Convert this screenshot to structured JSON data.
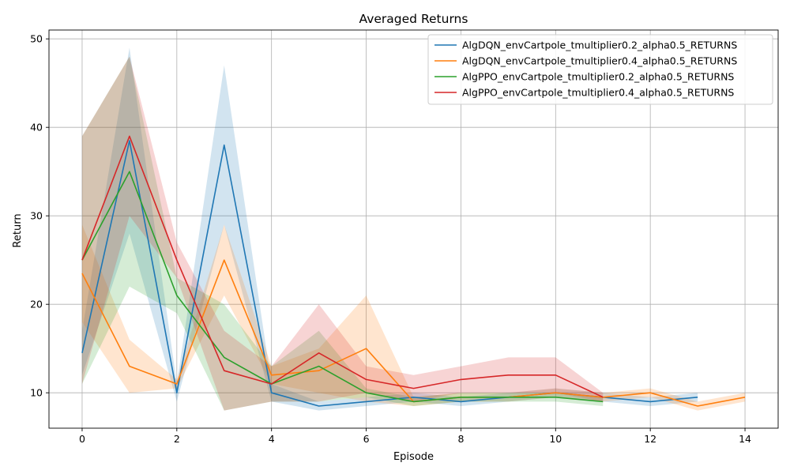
{
  "chart_data": {
    "type": "line",
    "title": "Averaged Returns",
    "xlabel": "Episode",
    "ylabel": "Return",
    "xlim": [
      -0.7,
      14.7
    ],
    "ylim": [
      6,
      51
    ],
    "xticks": [
      0,
      2,
      4,
      6,
      8,
      10,
      12,
      14
    ],
    "yticks": [
      10,
      20,
      30,
      40,
      50
    ],
    "grid": true,
    "legend_position": "top-right",
    "series": [
      {
        "name": "AlgDQN_envCartpole_tmultiplier0.2_alpha0.5_RETURNS",
        "color": "#1f77b4",
        "x": [
          0,
          1,
          2,
          3,
          4,
          5,
          6,
          7,
          8,
          9,
          10,
          11,
          12,
          13
        ],
        "y": [
          14.5,
          38.5,
          10,
          38,
          10,
          8.5,
          9,
          9.5,
          9,
          9.5,
          10,
          9.5,
          9,
          9.5
        ],
        "lower": [
          12,
          28,
          9,
          29,
          9,
          8,
          8.5,
          9,
          8.5,
          9,
          9.5,
          9,
          8.5,
          9
        ],
        "upper": [
          17,
          49,
          11,
          47,
          11,
          9,
          9.5,
          10,
          9.5,
          10,
          10.5,
          10,
          9.5,
          10
        ]
      },
      {
        "name": "AlgDQN_envCartpole_tmultiplier0.4_alpha0.5_RETURNS",
        "color": "#ff7f0e",
        "x": [
          0,
          1,
          2,
          3,
          4,
          5,
          6,
          7,
          8,
          9,
          10,
          11,
          12,
          13,
          14
        ],
        "y": [
          23.5,
          13,
          11,
          25,
          12,
          12.5,
          15,
          9,
          9.5,
          9.5,
          10,
          9.5,
          10,
          8.5,
          9.5
        ],
        "lower": [
          18,
          10,
          10.5,
          21,
          11,
          10,
          9,
          8.5,
          9,
          9,
          9.5,
          9,
          9.5,
          8,
          9
        ],
        "upper": [
          29,
          16,
          11.5,
          29,
          13,
          15,
          21,
          9.5,
          10,
          10,
          10.5,
          10,
          10.5,
          9,
          10
        ]
      },
      {
        "name": "AlgPPO_envCartpole_tmultiplier0.2_alpha0.5_RETURNS",
        "color": "#2ca02c",
        "x": [
          0,
          1,
          2,
          3,
          4,
          5,
          6,
          7,
          8,
          9,
          10,
          11
        ],
        "y": [
          25,
          35,
          21,
          14,
          11,
          13,
          10,
          9,
          9.5,
          9.5,
          9.5,
          9
        ],
        "lower": [
          11,
          22,
          19,
          8,
          9,
          9,
          9.5,
          8.5,
          9,
          9,
          9,
          8.5
        ],
        "upper": [
          39,
          48,
          23,
          20,
          13,
          17,
          10.5,
          9.5,
          10,
          10,
          10,
          9.5
        ]
      },
      {
        "name": "AlgPPO_envCartpole_tmultiplier0.4_alpha0.5_RETURNS",
        "color": "#d62728",
        "x": [
          0,
          1,
          2,
          3,
          4,
          5,
          6,
          7,
          8,
          9,
          10,
          11
        ],
        "y": [
          25,
          39,
          25,
          12.5,
          11,
          14.5,
          11.5,
          10.5,
          11.5,
          12,
          12,
          9.5
        ],
        "lower": [
          11,
          30,
          23,
          8,
          9,
          9,
          10,
          9,
          10,
          10,
          10,
          9
        ],
        "upper": [
          39,
          48,
          27,
          17,
          13,
          20,
          13,
          12,
          13,
          14,
          14,
          10
        ]
      }
    ]
  }
}
